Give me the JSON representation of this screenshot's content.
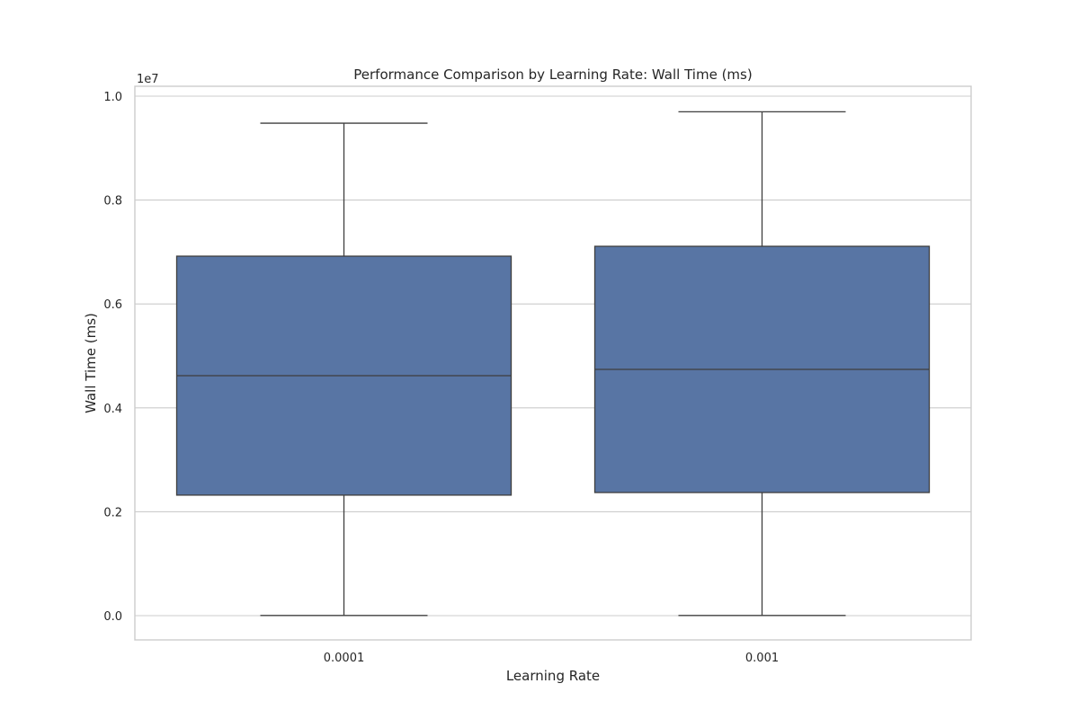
{
  "chart_data": {
    "type": "box",
    "title": "Performance Comparison by Learning Rate: Wall Time (ms)",
    "xlabel": "Learning Rate",
    "ylabel": "Wall Time (ms)",
    "y_offset_label": "1e7",
    "categories": [
      "0.0001",
      "0.001"
    ],
    "ylim": [
      -0.045,
      1.02
    ],
    "y_scale": 10000000,
    "yticks": [
      0.0,
      0.2,
      0.4,
      0.6,
      0.8,
      1.0
    ],
    "ytick_labels": [
      "0.0",
      "0.2",
      "0.4",
      "0.6",
      "0.8",
      "1.0"
    ],
    "boxes": [
      {
        "category": "0.0001",
        "whisker_low": 0.003,
        "q1": 2.32,
        "median": 4.62,
        "q3": 6.92,
        "whisker_high": 9.48
      },
      {
        "category": "0.001",
        "whisker_low": 0.003,
        "q1": 2.37,
        "median": 4.74,
        "q3": 7.11,
        "whisker_high": 9.7
      }
    ],
    "box_color": "#5875a4",
    "line_color": "#3f3f3f",
    "grid": true,
    "grid_axis": "y"
  }
}
